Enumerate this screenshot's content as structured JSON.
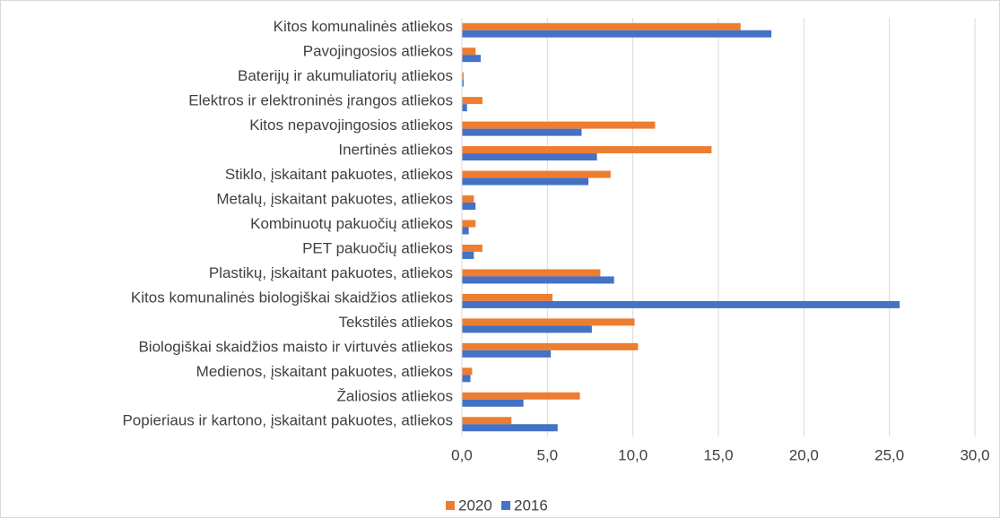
{
  "chart_data": {
    "type": "bar",
    "orientation": "horizontal",
    "categories": [
      "Kitos komunalinės atliekos",
      "Pavojingosios atliekos",
      "Baterijų ir akumuliatorių atliekos",
      "Elektros ir elektroninės įrangos atliekos",
      "Kitos  nepavojingosios atliekos",
      "Inertinės atliekos",
      "Stiklo, įskaitant pakuotes, atliekos",
      "Metalų, įskaitant pakuotes, atliekos",
      "Kombinuotų pakuočių atliekos",
      "PET pakuočių atliekos",
      "Plastikų, įskaitant pakuotes, atliekos",
      "Kitos komunalinės biologiškai skaidžios atliekos",
      "Tekstilės atliekos",
      "Biologiškai skaidžios maisto ir virtuvės atliekos",
      "Medienos, įskaitant pakuotes, atliekos",
      "Žaliosios atliekos",
      "Popieriaus ir kartono, įskaitant pakuotes, atliekos"
    ],
    "series": [
      {
        "name": "2020",
        "color": "#ed7d31",
        "values": [
          16.3,
          0.8,
          0.1,
          1.2,
          11.3,
          14.6,
          8.7,
          0.7,
          0.8,
          1.2,
          8.1,
          5.3,
          10.1,
          10.3,
          0.6,
          6.9,
          2.9
        ]
      },
      {
        "name": "2016",
        "color": "#4472c4",
        "values": [
          18.1,
          1.1,
          0.1,
          0.3,
          7.0,
          7.9,
          7.4,
          0.8,
          0.4,
          0.7,
          8.9,
          25.6,
          7.6,
          5.2,
          0.5,
          3.6,
          5.6
        ]
      }
    ],
    "xlim": [
      0,
      30
    ],
    "xticks": [
      {
        "value": 0,
        "label": "0,0"
      },
      {
        "value": 5,
        "label": "5,0"
      },
      {
        "value": 10,
        "label": "10,0"
      },
      {
        "value": 15,
        "label": "15,0"
      },
      {
        "value": 20,
        "label": "20,0"
      },
      {
        "value": 25,
        "label": "25,0"
      },
      {
        "value": 30,
        "label": "30,0"
      }
    ],
    "grid": true,
    "legend": "bottom"
  }
}
